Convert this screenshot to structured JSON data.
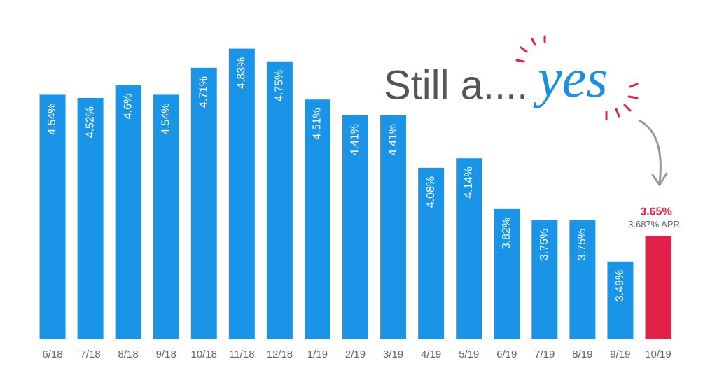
{
  "chart_data": {
    "type": "bar",
    "headline": "Still a....",
    "headline_emphasis": "yes",
    "categories": [
      "6/18",
      "7/18",
      "8/18",
      "9/18",
      "10/18",
      "11/18",
      "12/18",
      "1/19",
      "2/19",
      "3/19",
      "4/19",
      "5/19",
      "6/19",
      "7/19",
      "8/19",
      "9/19",
      "10/19"
    ],
    "values": [
      4.54,
      4.52,
      4.6,
      4.54,
      4.71,
      4.83,
      4.75,
      4.51,
      4.41,
      4.41,
      4.08,
      4.14,
      3.82,
      3.75,
      3.75,
      3.49,
      3.65
    ],
    "value_labels": [
      "4.54%",
      "4.52%",
      "4.6%",
      "4.54%",
      "4.71%",
      "4.83%",
      "4.75%",
      "4.51%",
      "4.41%",
      "4.41%",
      "4.08%",
      "4.14%",
      "3.82%",
      "3.75%",
      "3.75%",
      "3.49%",
      "3.65%"
    ],
    "colors": [
      "#1a94e6",
      "#1a94e6",
      "#1a94e6",
      "#1a94e6",
      "#1a94e6",
      "#1a94e6",
      "#1a94e6",
      "#1a94e6",
      "#1a94e6",
      "#1a94e6",
      "#1a94e6",
      "#1a94e6",
      "#1a94e6",
      "#1a94e6",
      "#1a94e6",
      "#1a94e6",
      "#e2214b"
    ],
    "apr_note": "3.687% APR",
    "ylim": [
      3,
      5
    ]
  }
}
